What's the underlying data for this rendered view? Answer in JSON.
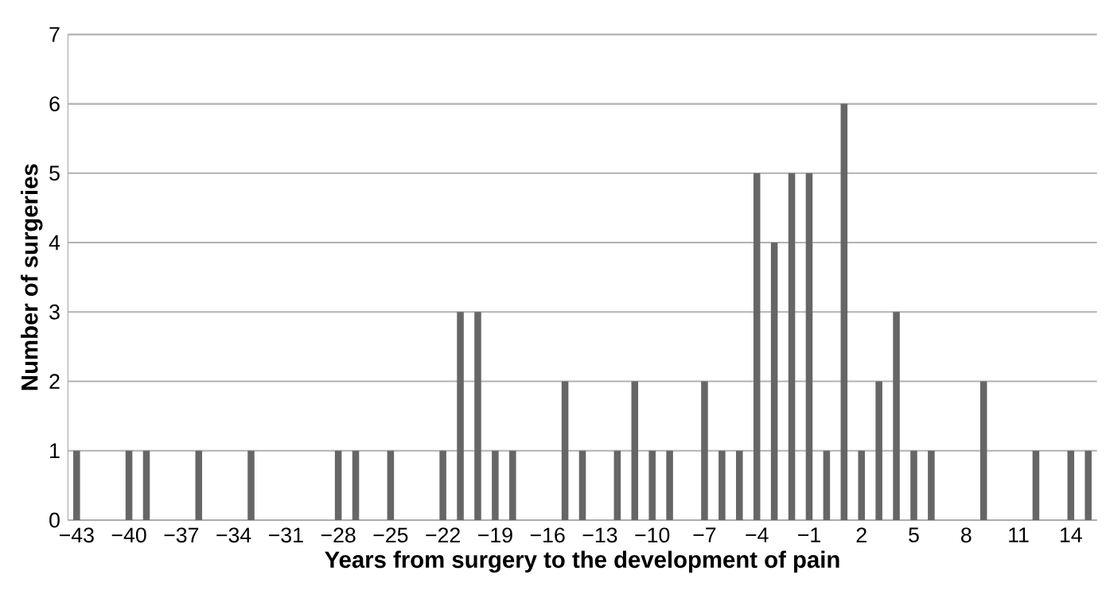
{
  "chart_data": {
    "type": "bar",
    "xlabel": "Years from surgery to the development of pain",
    "ylabel": "Number of surgeries",
    "categories": [
      "−43",
      null,
      null,
      "−40",
      null,
      null,
      "−37",
      null,
      null,
      "−34",
      null,
      null,
      "−31",
      null,
      null,
      "−28",
      null,
      null,
      "−25",
      null,
      null,
      "−22",
      null,
      null,
      "−19",
      null,
      null,
      "−16",
      null,
      null,
      "−13",
      null,
      null,
      "−10",
      null,
      null,
      "−7",
      null,
      null,
      "−4",
      null,
      null,
      "−1",
      null,
      null,
      "2",
      null,
      null,
      "5",
      null,
      null,
      "8",
      null,
      null,
      "11",
      null,
      null,
      "14",
      null
    ],
    "values": [
      1,
      0,
      0,
      1,
      1,
      0,
      0,
      1,
      0,
      0,
      1,
      0,
      0,
      0,
      0,
      1,
      1,
      0,
      1,
      0,
      0,
      1,
      3,
      3,
      1,
      1,
      0,
      0,
      2,
      1,
      0,
      1,
      2,
      1,
      1,
      0,
      2,
      1,
      1,
      5,
      4,
      5,
      5,
      1,
      6,
      1,
      2,
      3,
      1,
      1,
      0,
      0,
      2,
      0,
      0,
      1,
      0,
      1,
      1
    ],
    "color": "#666666",
    "ylim": [
      0,
      7
    ],
    "yticks": [
      0,
      1,
      2,
      3,
      4,
      5,
      6,
      7
    ],
    "grid": "y"
  }
}
